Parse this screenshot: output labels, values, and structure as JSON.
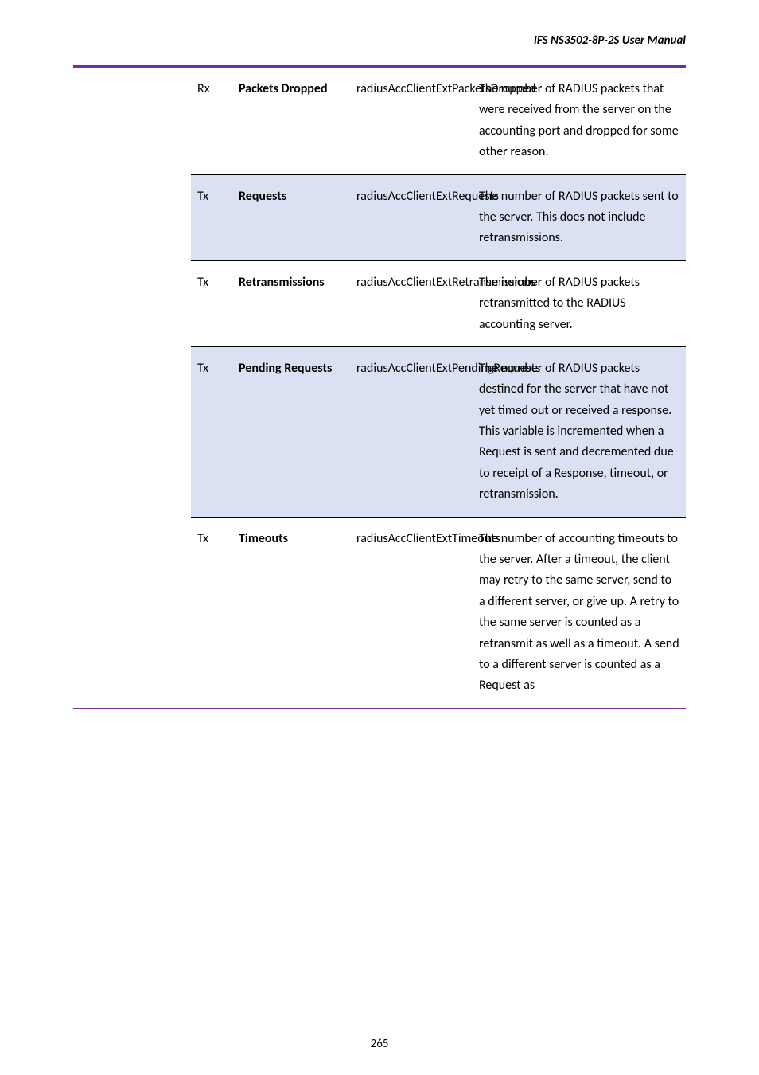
{
  "header": {
    "running_head": "IFS  NS3502-8P-2S  User  Manual"
  },
  "colors": {
    "accent_border": "#6f2f9f",
    "row_shade": "#d9e1f2",
    "cell_border": "#000000",
    "text": "#000000"
  },
  "table": {
    "rows": [
      {
        "shaded": false,
        "dir": "Rx",
        "name": "Packets Dropped",
        "mib": "radiusAccClientExtPacketsDropped",
        "desc": "The number of RADIUS packets that were received from the server on the accounting port and dropped for some other reason."
      },
      {
        "shaded": true,
        "dir": "Tx",
        "name": "Requests",
        "mib": "radiusAccClientExtRequests",
        "desc": "The number of RADIUS packets sent to the server. This does not include retransmissions."
      },
      {
        "shaded": false,
        "dir": "Tx",
        "name": "Retransmissions",
        "mib": "radiusAccClientExtRetransmissions",
        "desc": "The number of RADIUS packets retransmitted to the RADIUS accounting server."
      },
      {
        "shaded": true,
        "dir": "Tx",
        "name": "Pending Requests",
        "mib": "radiusAccClientExtPendingRequests",
        "desc": "The number of RADIUS packets destined for the server that have not yet timed out or received a response. This variable is incremented when a Request is sent and decremented due to receipt of a Response, timeout, or retransmission."
      },
      {
        "shaded": false,
        "dir": "Tx",
        "name": "Timeouts",
        "mib": "radiusAccClientExtTimeouts",
        "desc": "The number of accounting timeouts to the server. After a timeout, the client may retry to the same server, send to a different server, or give up. A retry to the same server is counted as a retransmit as well as a timeout. A send to a different server is counted as a Request as"
      }
    ]
  },
  "footer": {
    "page_number": "265"
  }
}
